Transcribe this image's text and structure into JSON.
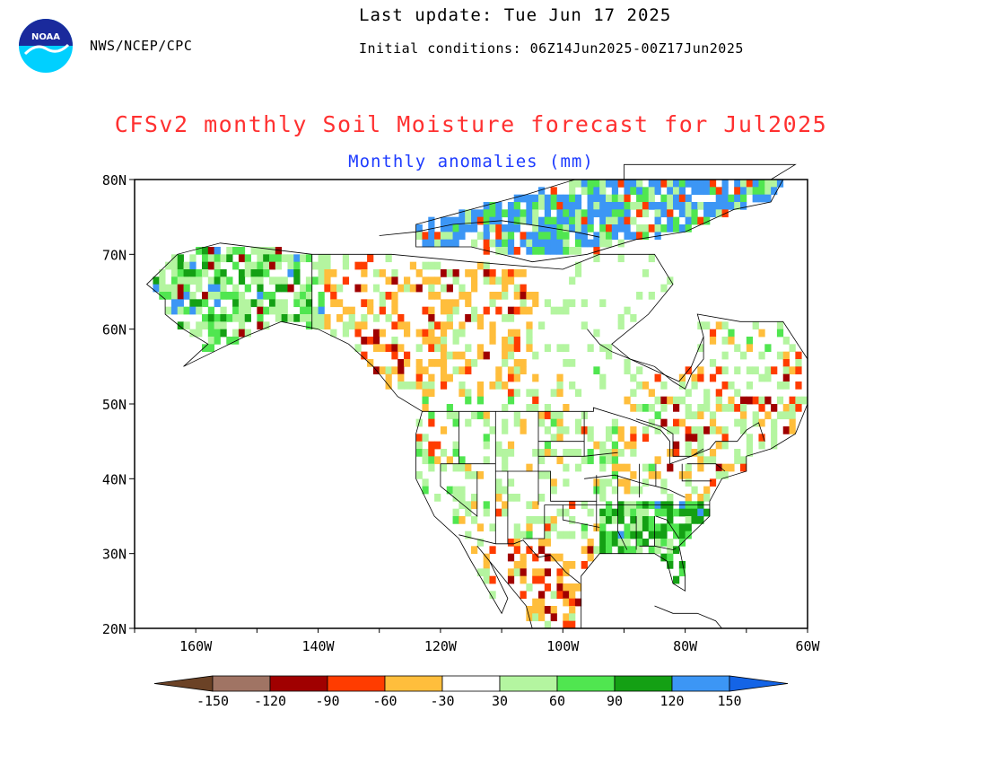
{
  "header": {
    "logo_text": "NOAA",
    "agency": "NWS/NCEP/CPC",
    "last_update": "Last update: Tue Jun 17 2025",
    "initial_conditions": "Initial conditions: 06Z14Jun2025-00Z17Jun2025"
  },
  "title": "CFSv2 monthly Soil Moisture forecast for Jul2025",
  "subtitle": "Monthly anomalies (mm)",
  "map": {
    "projection": "lat-lon",
    "lon_range": [
      -170,
      -60
    ],
    "lat_range": [
      20,
      80
    ],
    "lat_labels": [
      "80N",
      "70N",
      "60N",
      "50N",
      "40N",
      "30N",
      "20N"
    ],
    "lon_labels": [
      "160W",
      "140W",
      "120W",
      "100W",
      "80W",
      "60W"
    ],
    "anomaly_regions": [
      {
        "name": "canadian-arctic-archipelago",
        "class": "90-120"
      },
      {
        "name": "alaska",
        "class": "30-60"
      },
      {
        "name": "western-canada",
        "class": "-60--30"
      },
      {
        "name": "southeastern-us",
        "class": "60-90"
      },
      {
        "name": "mexico",
        "class": "-90--60"
      }
    ]
  },
  "colorbar": {
    "labels": [
      "-150",
      "-120",
      "-90",
      "-60",
      "-30",
      "30",
      "60",
      "90",
      "120",
      "150"
    ],
    "colors": [
      "#6b4226",
      "#a07464",
      "#a00000",
      "#ff3c00",
      "#ffbe3c",
      "#ffffff",
      "#b4f5a0",
      "#50e650",
      "#14a014",
      "#3c96f5",
      "#1464e6"
    ]
  }
}
